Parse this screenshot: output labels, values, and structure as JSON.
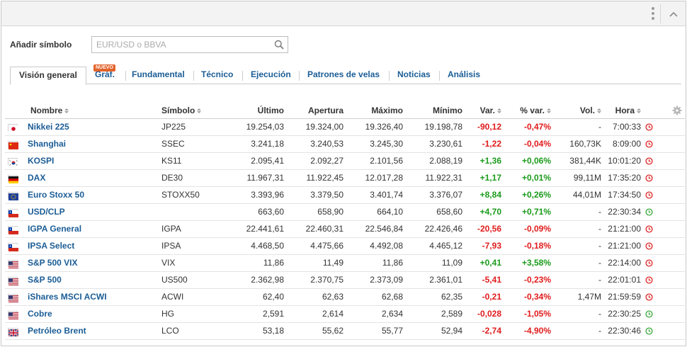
{
  "toolbar": {
    "add_symbol_label": "Añadir símbolo"
  },
  "search": {
    "placeholder": "EUR/USD o BBVA",
    "value": ""
  },
  "tabs": [
    {
      "label": "Visión general",
      "active": true
    },
    {
      "label": "Gráf.",
      "badge": "NUEVO"
    },
    {
      "label": "Fundamental"
    },
    {
      "label": "Técnico"
    },
    {
      "label": "Ejecución"
    },
    {
      "label": "Patrones de velas"
    },
    {
      "label": "Noticias"
    },
    {
      "label": "Análisis"
    }
  ],
  "table": {
    "headers": {
      "name": "Nombre",
      "symbol": "Símbolo",
      "last": "Último",
      "open": "Apertura",
      "high": "Máximo",
      "low": "Mínimo",
      "change": "Var.",
      "change_pct": "% var.",
      "volume": "Vol.",
      "time": "Hora"
    },
    "rows": [
      {
        "flag": "japan",
        "name": "Nikkei 225",
        "symbol": "JP225",
        "last": "19.254,03",
        "open": "19.324,00",
        "high": "19.326,40",
        "low": "19.198,78",
        "change": "-90,12",
        "change_pct": "-0,47%",
        "volume": "-",
        "time": "7:00:33",
        "status": "closed"
      },
      {
        "flag": "china",
        "name": "Shanghai",
        "symbol": "SSEC",
        "last": "3.241,18",
        "open": "3.240,53",
        "high": "3.245,30",
        "low": "3.230,61",
        "change": "-1,22",
        "change_pct": "-0,04%",
        "volume": "160,73K",
        "time": "8:09:00",
        "status": "closed"
      },
      {
        "flag": "south-korea",
        "name": "KOSPI",
        "symbol": "KS11",
        "last": "2.095,41",
        "open": "2.092,27",
        "high": "2.101,56",
        "low": "2.088,19",
        "change": "+1,36",
        "change_pct": "+0,06%",
        "volume": "381,44K",
        "time": "10:01:20",
        "status": "closed"
      },
      {
        "flag": "germany",
        "name": "DAX",
        "symbol": "DE30",
        "last": "11.967,31",
        "open": "11.922,45",
        "high": "12.017,28",
        "low": "11.922,31",
        "change": "+1,17",
        "change_pct": "+0,01%",
        "volume": "99,11M",
        "time": "17:35:20",
        "status": "closed"
      },
      {
        "flag": "eu",
        "name": "Euro Stoxx 50",
        "symbol": "STOXX50",
        "last": "3.393,96",
        "open": "3.379,50",
        "high": "3.401,74",
        "low": "3.376,07",
        "change": "+8,84",
        "change_pct": "+0,26%",
        "volume": "44,01M",
        "time": "17:34:50",
        "status": "closed"
      },
      {
        "flag": "chile",
        "name": "USD/CLP",
        "symbol": "",
        "last": "663,60",
        "open": "658,90",
        "high": "664,10",
        "low": "658,60",
        "change": "+4,70",
        "change_pct": "+0,71%",
        "volume": "-",
        "time": "22:30:34",
        "status": "open"
      },
      {
        "flag": "chile",
        "name": "IGPA General",
        "symbol": "IGPA",
        "last": "22.441,61",
        "open": "22.460,31",
        "high": "22.546,84",
        "low": "22.426,46",
        "change": "-20,56",
        "change_pct": "-0,09%",
        "volume": "-",
        "time": "21:21:00",
        "status": "closed"
      },
      {
        "flag": "chile",
        "name": "IPSA Select",
        "symbol": "IPSA",
        "last": "4.468,50",
        "open": "4.475,66",
        "high": "4.492,08",
        "low": "4.465,12",
        "change": "-7,93",
        "change_pct": "-0,18%",
        "volume": "-",
        "time": "21:21:00",
        "status": "closed"
      },
      {
        "flag": "usa",
        "name": "S&P 500 VIX",
        "symbol": "VIX",
        "last": "11,86",
        "open": "11,49",
        "high": "11,86",
        "low": "11,09",
        "change": "+0,41",
        "change_pct": "+3,58%",
        "volume": "-",
        "time": "22:14:00",
        "status": "closed"
      },
      {
        "flag": "usa",
        "name": "S&P 500",
        "symbol": "US500",
        "last": "2.362,98",
        "open": "2.370,75",
        "high": "2.373,09",
        "low": "2.361,01",
        "change": "-5,41",
        "change_pct": "-0,23%",
        "volume": "-",
        "time": "22:01:01",
        "status": "closed"
      },
      {
        "flag": "usa",
        "name": "iShares MSCI ACWI",
        "symbol": "ACWI",
        "last": "62,40",
        "open": "62,63",
        "high": "62,68",
        "low": "62,35",
        "change": "-0,21",
        "change_pct": "-0,34%",
        "volume": "1,47M",
        "time": "21:59:59",
        "status": "closed"
      },
      {
        "flag": "usa",
        "name": "Cobre",
        "symbol": "HG",
        "last": "2,591",
        "open": "2,614",
        "high": "2,634",
        "low": "2,589",
        "change": "-0,028",
        "change_pct": "-1,05%",
        "volume": "-",
        "time": "22:30:25",
        "status": "open"
      },
      {
        "flag": "uk",
        "name": "Petróleo Brent",
        "symbol": "LCO",
        "last": "53,18",
        "open": "55,62",
        "high": "55,77",
        "low": "52,94",
        "change": "-2,74",
        "change_pct": "-4,90%",
        "volume": "-",
        "time": "22:30:46",
        "status": "open"
      }
    ]
  },
  "colors": {
    "positive": "#1a9b1a",
    "negative": "#e01b1b",
    "link": "#1b5d96",
    "badge": "#e2632b",
    "clock_open": "#3aa83a",
    "clock_closed": "#e02424"
  },
  "icons": {
    "menu": "kebab-icon",
    "collapse": "chevron-up-icon",
    "search": "search-icon",
    "settings": "gear-icon",
    "clock": "clock-icon"
  }
}
